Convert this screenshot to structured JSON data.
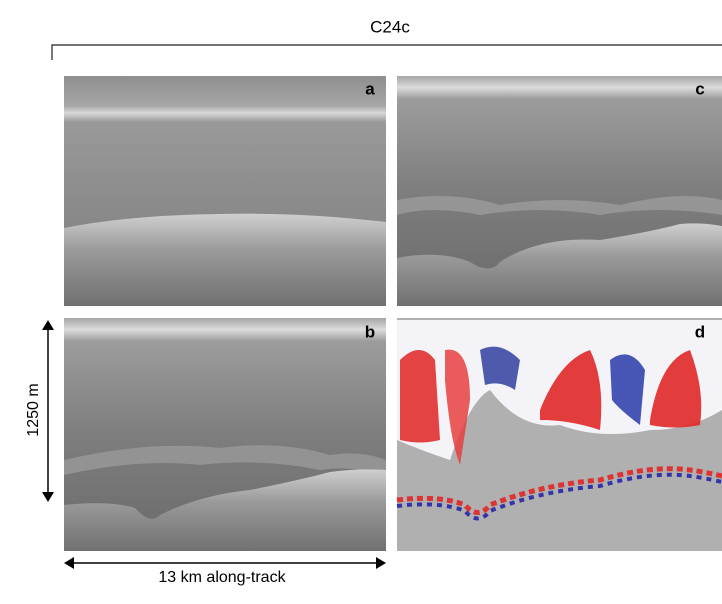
{
  "figure": {
    "title": "C24c",
    "panels": [
      {
        "label": "a"
      },
      {
        "label": "b"
      },
      {
        "label": "c"
      },
      {
        "label": "d"
      }
    ],
    "scale_bars": {
      "vertical": "1250 m",
      "horizontal": "13 km along-track"
    }
  }
}
